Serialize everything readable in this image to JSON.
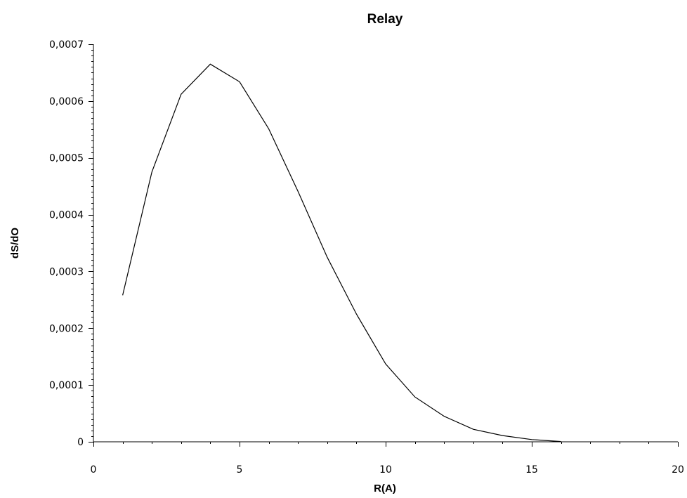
{
  "chart_data": {
    "type": "line",
    "title": "Relay",
    "xlabel": "R(A)",
    "ylabel": "dS/dO",
    "xlim": [
      0,
      20
    ],
    "ylim": [
      0,
      0.0007
    ],
    "x_ticks": [
      0,
      5,
      10,
      15,
      20
    ],
    "x_tick_labels": [
      "0",
      "5",
      "10",
      "15",
      "20"
    ],
    "y_ticks": [
      0,
      0.0001,
      0.0002,
      0.0003,
      0.0004,
      0.0005,
      0.0006,
      0.0007
    ],
    "y_tick_labels": [
      "0",
      "0,0001",
      "0,0002",
      "0,0003",
      "0,0004",
      "0,0005",
      "0,0006",
      "0,0007"
    ],
    "x_minor_step": 1,
    "y_minor_step": 1e-05,
    "grid": false,
    "legend": "none",
    "series": [
      {
        "x": [
          1,
          2,
          3,
          4,
          5,
          6,
          7,
          8,
          9,
          10,
          11,
          12,
          13,
          14,
          15,
          16
        ],
        "y": [
          0.000258,
          0.000475,
          0.000612,
          0.000665,
          0.000634,
          0.000551,
          0.000441,
          0.000325,
          0.000225,
          0.000137,
          7.9e-05,
          4.5e-05,
          2.2e-05,
          1.1e-05,
          4e-06,
          5e-07
        ],
        "color": "#000000"
      }
    ]
  }
}
